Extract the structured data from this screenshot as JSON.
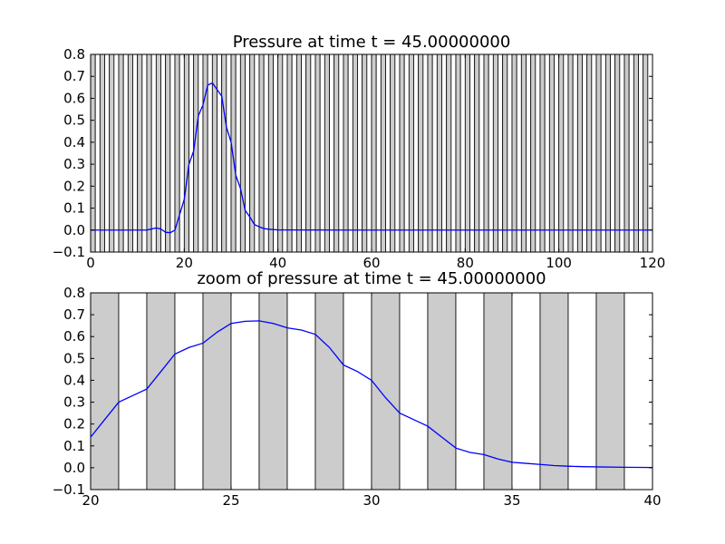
{
  "colors": {
    "background": "#ffffff",
    "band": "#cccccc",
    "line": "#0000ff",
    "axes": "#000000"
  },
  "chart_data": [
    {
      "type": "line",
      "title": "Pressure at time t =    45.00000000",
      "xlabel": "",
      "ylabel": "",
      "xlim": [
        0,
        120
      ],
      "ylim": [
        -0.1,
        0.8
      ],
      "xticks": [
        0,
        20,
        40,
        60,
        80,
        100,
        120
      ],
      "yticks": [
        -0.1,
        0.0,
        0.1,
        0.2,
        0.3,
        0.4,
        0.5,
        0.6,
        0.7,
        0.8
      ],
      "xtick_labels": [
        "0",
        "20",
        "40",
        "60",
        "80",
        "100",
        "120"
      ],
      "ytick_labels": [
        "−0.1",
        "0.0",
        "0.1",
        "0.2",
        "0.3",
        "0.4",
        "0.5",
        "0.6",
        "0.7",
        "0.8"
      ],
      "grid": false,
      "bands": {
        "start": 0,
        "end": 120,
        "width": 1,
        "filled_parity": "even"
      },
      "series": [
        {
          "x": [
            0,
            10,
            12,
            13,
            14,
            15,
            16,
            17,
            18,
            19,
            20,
            21,
            22,
            23,
            24,
            25,
            26,
            27,
            28,
            29,
            30,
            31,
            32,
            33,
            34,
            35,
            36,
            37,
            38,
            40,
            60,
            80,
            100,
            120
          ],
          "y": [
            0,
            0,
            0,
            0.005,
            0.01,
            0.005,
            -0.01,
            -0.012,
            0,
            0.07,
            0.14,
            0.3,
            0.36,
            0.52,
            0.57,
            0.66,
            0.67,
            0.64,
            0.61,
            0.47,
            0.4,
            0.25,
            0.19,
            0.09,
            0.06,
            0.025,
            0.015,
            0.007,
            0.004,
            0.001,
            0,
            0,
            0,
            0
          ]
        }
      ]
    },
    {
      "type": "line",
      "title": "zoom of pressure at time t =    45.00000000",
      "xlabel": "",
      "ylabel": "",
      "xlim": [
        20,
        40
      ],
      "ylim": [
        -0.1,
        0.8
      ],
      "xticks": [
        20,
        25,
        30,
        35,
        40
      ],
      "yticks": [
        -0.1,
        0.0,
        0.1,
        0.2,
        0.3,
        0.4,
        0.5,
        0.6,
        0.7,
        0.8
      ],
      "xtick_labels": [
        "20",
        "25",
        "30",
        "35",
        "40"
      ],
      "ytick_labels": [
        "−0.1",
        "0.0",
        "0.1",
        "0.2",
        "0.3",
        "0.4",
        "0.5",
        "0.6",
        "0.7",
        "0.8"
      ],
      "grid": false,
      "bands": {
        "start": 20,
        "end": 40,
        "width": 1,
        "filled_parity": "even"
      },
      "series": [
        {
          "x": [
            20,
            20.5,
            21,
            21.5,
            22,
            22.5,
            23,
            23.5,
            24,
            24.5,
            25,
            25.5,
            26,
            26.5,
            27,
            27.5,
            28,
            28.5,
            29,
            29.5,
            30,
            30.5,
            31,
            31.5,
            32,
            32.5,
            33,
            33.5,
            34,
            34.5,
            35,
            35.5,
            36,
            36.5,
            37,
            37.5,
            38,
            39,
            40
          ],
          "y": [
            0.14,
            0.22,
            0.3,
            0.33,
            0.36,
            0.44,
            0.52,
            0.55,
            0.57,
            0.62,
            0.66,
            0.67,
            0.672,
            0.66,
            0.64,
            0.63,
            0.61,
            0.55,
            0.47,
            0.44,
            0.4,
            0.32,
            0.25,
            0.22,
            0.19,
            0.14,
            0.09,
            0.07,
            0.06,
            0.04,
            0.025,
            0.02,
            0.015,
            0.01,
            0.007,
            0.005,
            0.004,
            0.002,
            0.001
          ]
        }
      ]
    }
  ]
}
